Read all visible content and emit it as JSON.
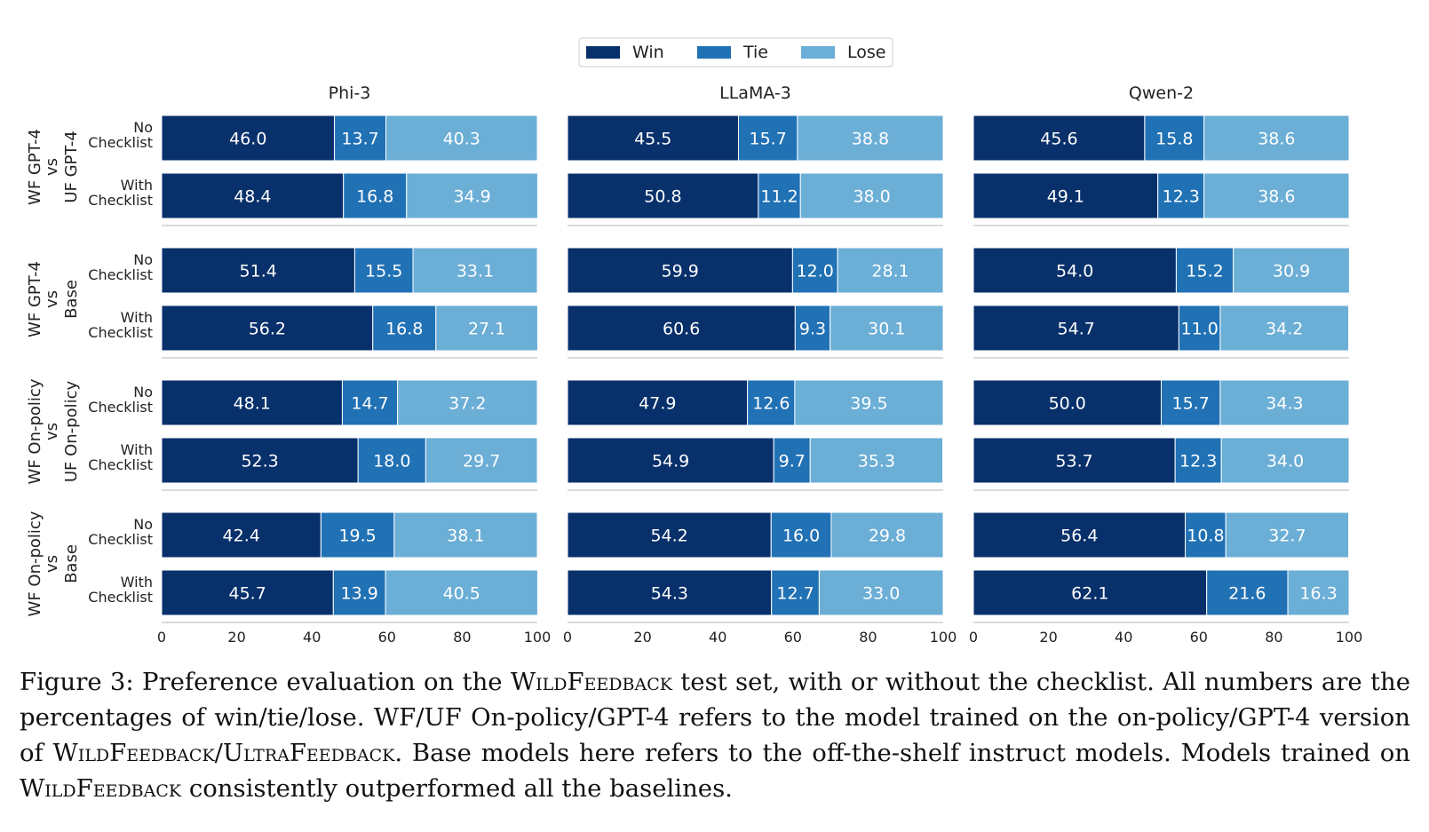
{
  "chart_data": {
    "type": "bar",
    "orientation": "horizontal",
    "stacked": true,
    "legend": {
      "placement": "top-center",
      "items": [
        {
          "label": "Win",
          "color": "#08306b"
        },
        {
          "label": "Tie",
          "color": "#2171b5"
        },
        {
          "label": "Lose",
          "color": "#6baed6"
        }
      ]
    },
    "xlim": [
      0,
      100
    ],
    "xticks": [
      "0",
      "20",
      "40",
      "60",
      "80",
      "100"
    ],
    "grid": false,
    "row_labels": [
      "No\nChecklist",
      "With\nChecklist"
    ],
    "groups": [
      {
        "label": "WF GPT-4\nvs\nUF GPT-4"
      },
      {
        "label": "WF GPT-4\nvs\nBase"
      },
      {
        "label": "WF On-policy\nvs\nUF On-policy"
      },
      {
        "label": "WF On-policy\nvs\nBase"
      }
    ],
    "panels": [
      {
        "title": "Phi-3",
        "values": [
          [
            [
              46.0,
              13.7,
              40.3
            ],
            [
              48.4,
              16.8,
              34.9
            ]
          ],
          [
            [
              51.4,
              15.5,
              33.1
            ],
            [
              56.2,
              16.8,
              27.1
            ]
          ],
          [
            [
              48.1,
              14.7,
              37.2
            ],
            [
              52.3,
              18.0,
              29.7
            ]
          ],
          [
            [
              42.4,
              19.5,
              38.1
            ],
            [
              45.7,
              13.9,
              40.5
            ]
          ]
        ]
      },
      {
        "title": "LLaMA-3",
        "values": [
          [
            [
              45.5,
              15.7,
              38.8
            ],
            [
              50.8,
              11.2,
              38.0
            ]
          ],
          [
            [
              59.9,
              12.0,
              28.1
            ],
            [
              60.6,
              9.3,
              30.1
            ]
          ],
          [
            [
              47.9,
              12.6,
              39.5
            ],
            [
              54.9,
              9.7,
              35.3
            ]
          ],
          [
            [
              54.2,
              16.0,
              29.8
            ],
            [
              54.3,
              12.7,
              33.0
            ]
          ]
        ]
      },
      {
        "title": "Qwen-2",
        "values": [
          [
            [
              45.6,
              15.8,
              38.6
            ],
            [
              49.1,
              12.3,
              38.6
            ]
          ],
          [
            [
              54.0,
              15.2,
              30.9
            ],
            [
              54.7,
              11.0,
              34.2
            ]
          ],
          [
            [
              50.0,
              15.7,
              34.3
            ],
            [
              53.7,
              12.3,
              34.0
            ]
          ],
          [
            [
              56.4,
              10.8,
              32.7
            ],
            [
              62.1,
              21.6,
              16.3
            ]
          ]
        ]
      }
    ]
  },
  "caption": {
    "segments": [
      {
        "text": "Figure 3: Preference evaluation on the ",
        "sc": false
      },
      {
        "text": "WildFeedback",
        "sc": true
      },
      {
        "text": " test set, with or without the checklist. All numbers are the percentages of win/tie/lose. WF/UF On-policy/GPT-4 refers to the model trained on the on-policy/GPT-4 version of ",
        "sc": false
      },
      {
        "text": "WildFeedback",
        "sc": true
      },
      {
        "text": "/",
        "sc": false
      },
      {
        "text": "UltraFeedback",
        "sc": true
      },
      {
        "text": ". Base models here refers to the off-the-shelf instruct models. Models trained on ",
        "sc": false
      },
      {
        "text": "WildFeedback",
        "sc": true
      },
      {
        "text": " consistently outperformed all the baselines.",
        "sc": false
      }
    ]
  }
}
